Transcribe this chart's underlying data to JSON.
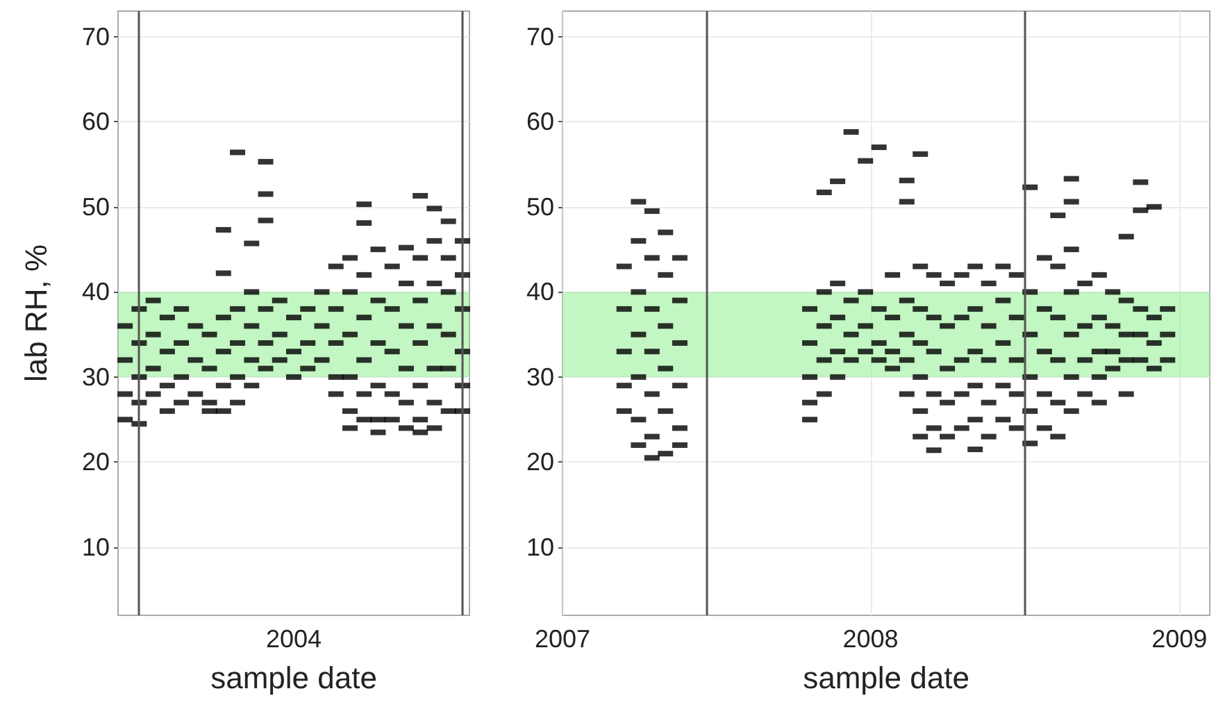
{
  "chart_data": [
    {
      "type": "scatter",
      "xlabel": "sample date",
      "ylabel": "lab RH, %",
      "categories": [
        null,
        null,
        null,
        null,
        null,
        null,
        null,
        null,
        null,
        null,
        null,
        null,
        "2004",
        null,
        null,
        null,
        null,
        null,
        null,
        null,
        null,
        null,
        null,
        null,
        null
      ],
      "ylim": [
        2,
        73
      ],
      "yticks": [
        10,
        20,
        30,
        40,
        50,
        60,
        70
      ],
      "grid": true,
      "bands": [
        {
          "axis": "y",
          "from": 30,
          "to": 40,
          "color": "#90ee90"
        }
      ],
      "series": [
        {
          "color": "#000000",
          "values": [
            36,
            38,
            39,
            37,
            38,
            36,
            35,
            47.3,
            56.4,
            45.7,
            55.3,
            39,
            37,
            38,
            40,
            43,
            44,
            50.3,
            45,
            43,
            45.2,
            51.3,
            49.8,
            48.3,
            46
          ]
        },
        {
          "color": "#000000",
          "values": [
            32,
            34,
            35,
            33,
            34,
            32,
            31,
            42.2,
            38,
            40,
            51.5,
            35,
            33,
            34,
            36,
            38,
            40,
            48.1,
            39,
            38,
            41,
            44,
            46,
            44,
            42
          ]
        },
        {
          "color": "#000000",
          "values": [
            28,
            30,
            31,
            29,
            30,
            28,
            27,
            37,
            34,
            36,
            48.4,
            32,
            30,
            31,
            32,
            34,
            35,
            42,
            34,
            33,
            36,
            39,
            41,
            40,
            38
          ]
        },
        {
          "color": "#000000",
          "values": [
            25,
            27,
            28,
            26,
            27,
            null,
            26,
            33,
            30,
            32,
            38,
            null,
            null,
            null,
            null,
            30,
            30,
            37,
            29,
            28,
            31,
            34,
            36,
            35,
            33
          ]
        },
        {
          "color": "#000000",
          "values": [
            null,
            24.5,
            null,
            null,
            null,
            null,
            null,
            29,
            27,
            29,
            34,
            null,
            null,
            null,
            null,
            28,
            26,
            32,
            25,
            25,
            27,
            29,
            31,
            31,
            29
          ]
        },
        {
          "color": "#000000",
          "values": [
            null,
            null,
            null,
            null,
            null,
            null,
            null,
            26,
            null,
            null,
            31,
            null,
            null,
            null,
            null,
            null,
            24,
            28,
            23.5,
            null,
            24,
            25,
            27,
            26,
            26
          ]
        },
        {
          "color": "#000000",
          "values": [
            null,
            null,
            null,
            null,
            null,
            null,
            null,
            null,
            null,
            null,
            null,
            null,
            null,
            null,
            null,
            null,
            null,
            25,
            null,
            null,
            null,
            23.5,
            24,
            null,
            null
          ]
        }
      ]
    },
    {
      "type": "scatter",
      "xlabel": "sample date",
      "xlim": [
        "2007-01-01",
        "2009-02-06"
      ],
      "xticks": [
        "2007",
        "2008",
        "2009"
      ],
      "ylim": [
        2,
        73
      ],
      "yticks": [
        10,
        20,
        30,
        40,
        50,
        60,
        70
      ],
      "grid": true,
      "bands": [
        {
          "axis": "y",
          "from": 30,
          "to": 40,
          "color": "#90ee90"
        }
      ],
      "ref_lines": [
        {
          "axis": "x",
          "value": "2007-06-21",
          "color": "#555555"
        },
        {
          "axis": "x",
          "value": "2008-07-01",
          "color": "#555555"
        }
      ],
      "series": [
        {
          "color": "#000000",
          "x": [
            "2007-03-15",
            "2007-03-15",
            "2007-03-15",
            "2007-03-15",
            "2007-03-15",
            "2007-04-01",
            "2007-04-01",
            "2007-04-01",
            "2007-04-01",
            "2007-04-01",
            "2007-04-01",
            "2007-04-01",
            "2007-04-17",
            "2007-04-17",
            "2007-04-17",
            "2007-04-17",
            "2007-04-17",
            "2007-04-17",
            "2007-04-17",
            "2007-05-03",
            "2007-05-03",
            "2007-05-03",
            "2007-05-03",
            "2007-05-03",
            "2007-05-03",
            "2007-05-20",
            "2007-05-20",
            "2007-05-20",
            "2007-05-20",
            "2007-05-20",
            "2007-05-20",
            "2007-10-21",
            "2007-10-21",
            "2007-10-21",
            "2007-10-21",
            "2007-10-21",
            "2007-11-07",
            "2007-11-07",
            "2007-11-07",
            "2007-11-07",
            "2007-11-07",
            "2007-11-23",
            "2007-11-23",
            "2007-11-23",
            "2007-11-23",
            "2007-11-23",
            "2007-12-09",
            "2007-12-09",
            "2007-12-09",
            "2007-12-09",
            "2007-12-26",
            "2007-12-26",
            "2007-12-26",
            "2007-12-26",
            "2008-01-11",
            "2008-01-11",
            "2008-01-11",
            "2008-01-11",
            "2008-01-27",
            "2008-01-27",
            "2008-01-27",
            "2008-01-27",
            "2008-02-13",
            "2008-02-13",
            "2008-02-13",
            "2008-02-13",
            "2008-02-13",
            "2008-02-13",
            "2008-02-29",
            "2008-02-29",
            "2008-02-29",
            "2008-02-29",
            "2008-02-29",
            "2008-02-29",
            "2008-02-29",
            "2008-03-16",
            "2008-03-16",
            "2008-03-16",
            "2008-03-16",
            "2008-03-16",
            "2008-03-16",
            "2008-04-01",
            "2008-04-01",
            "2008-04-01",
            "2008-04-01",
            "2008-04-01",
            "2008-04-18",
            "2008-04-18",
            "2008-04-18",
            "2008-04-18",
            "2008-04-18",
            "2008-05-04",
            "2008-05-04",
            "2008-05-04",
            "2008-05-04",
            "2008-05-04",
            "2008-05-04",
            "2008-05-20",
            "2008-05-20",
            "2008-05-20",
            "2008-05-20",
            "2008-05-20",
            "2008-06-06",
            "2008-06-06",
            "2008-06-06",
            "2008-06-06",
            "2008-06-06",
            "2008-06-22",
            "2008-06-22",
            "2008-06-22",
            "2008-06-22",
            "2008-06-22",
            "2008-07-08",
            "2008-07-08",
            "2008-07-08",
            "2008-07-08",
            "2008-07-08",
            "2008-07-08",
            "2008-07-25",
            "2008-07-25",
            "2008-07-25",
            "2008-07-25",
            "2008-07-25",
            "2008-08-10",
            "2008-08-10",
            "2008-08-10",
            "2008-08-10",
            "2008-08-10",
            "2008-08-10",
            "2008-08-26",
            "2008-08-26",
            "2008-08-26",
            "2008-08-26",
            "2008-08-26",
            "2008-08-26",
            "2008-08-26",
            "2008-09-11",
            "2008-09-11",
            "2008-09-11",
            "2008-09-11",
            "2008-09-28",
            "2008-09-28",
            "2008-09-28",
            "2008-09-28",
            "2008-09-28",
            "2008-10-14",
            "2008-10-14",
            "2008-10-14",
            "2008-10-14",
            "2008-10-30",
            "2008-10-30",
            "2008-10-30",
            "2008-10-30",
            "2008-10-30",
            "2008-11-16",
            "2008-11-16",
            "2008-11-16",
            "2008-11-16",
            "2008-11-16",
            "2008-12-02",
            "2008-12-02",
            "2008-12-02",
            "2008-12-02",
            "2008-12-18",
            "2008-12-18",
            "2008-12-18"
          ],
          "values": [
            43,
            38,
            33,
            29,
            26,
            50.6,
            46,
            40,
            35,
            30,
            25,
            22,
            49.5,
            44,
            38,
            33,
            28,
            23,
            20.5,
            47,
            42,
            36,
            31,
            26,
            21,
            44,
            39,
            34,
            29,
            24,
            22,
            38,
            34,
            30,
            27,
            25,
            51.7,
            40,
            36,
            32,
            28,
            53,
            41,
            37,
            33,
            30,
            58.8,
            39,
            35,
            32,
            55.4,
            40,
            36,
            33,
            57,
            38,
            34,
            32,
            42,
            37,
            33,
            31,
            53.1,
            50.6,
            39,
            35,
            32,
            28,
            56.2,
            43,
            38,
            34,
            30,
            26,
            23,
            42,
            37,
            33,
            28,
            24,
            21.4,
            41,
            36,
            31,
            27,
            23,
            42,
            37,
            32,
            28,
            24,
            43,
            38,
            33,
            29,
            25,
            21.5,
            41,
            36,
            32,
            27,
            23,
            43,
            39,
            34,
            29,
            25,
            42,
            37,
            32,
            28,
            24,
            52.3,
            40,
            35,
            30,
            26,
            22.2,
            44,
            38,
            33,
            28,
            24,
            49,
            43,
            37,
            32,
            27,
            23,
            53.3,
            50.6,
            45,
            40,
            35,
            30,
            26,
            41,
            36,
            32,
            28,
            42,
            37,
            33,
            30,
            27,
            40,
            36,
            33,
            31,
            46.5,
            39,
            35,
            32,
            28,
            52.9,
            49.6,
            38,
            35,
            32,
            50,
            37,
            34,
            31,
            38,
            35,
            32
          ]
        }
      ]
    }
  ]
}
